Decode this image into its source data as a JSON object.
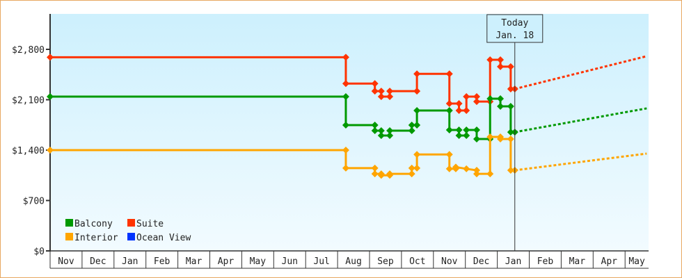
{
  "chart_data": {
    "type": "line",
    "subtype": "step",
    "title": "",
    "xlabel": "",
    "ylabel": "",
    "x_range": [
      "2022-11-01",
      "2024-05-22"
    ],
    "ylim": [
      0,
      3300
    ],
    "y_ticks": [
      0,
      700,
      1400,
      2100,
      2800
    ],
    "y_tick_labels": [
      "$0",
      "$700",
      "$1,400",
      "$2,100",
      "$2,800"
    ],
    "x_tick_labels": [
      "Nov",
      "Dec",
      "Jan",
      "Feb",
      "Mar",
      "Apr",
      "May",
      "Jun",
      "Jul",
      "Aug",
      "Sep",
      "Oct",
      "Nov",
      "Dec",
      "Jan",
      "Feb",
      "Mar",
      "Apr",
      "May"
    ],
    "grid": false,
    "legend_placement": "bottom-left",
    "today": {
      "date": "2024-01-18",
      "label_line1": "Today",
      "label_line2": "Jan. 18"
    },
    "series": [
      {
        "name": "Suite",
        "color": "#ff3300",
        "points": [
          [
            "2022-11-01",
            2690
          ],
          [
            "2023-08-09",
            2690
          ],
          [
            "2023-08-09",
            2325
          ],
          [
            "2023-09-06",
            2325
          ],
          [
            "2023-09-06",
            2220
          ],
          [
            "2023-09-12",
            2220
          ],
          [
            "2023-09-12",
            2143
          ],
          [
            "2023-09-20",
            2143
          ],
          [
            "2023-09-20",
            2220
          ],
          [
            "2023-10-16",
            2220
          ],
          [
            "2023-10-16",
            2460
          ],
          [
            "2023-11-16",
            2460
          ],
          [
            "2023-11-16",
            2047
          ],
          [
            "2023-11-25",
            2047
          ],
          [
            "2023-11-25",
            1950
          ],
          [
            "2023-12-02",
            1950
          ],
          [
            "2023-12-02",
            2143
          ],
          [
            "2023-12-12",
            2143
          ],
          [
            "2023-12-12",
            2075
          ],
          [
            "2023-12-25",
            2075
          ],
          [
            "2023-12-25",
            2655
          ],
          [
            "2024-01-04",
            2655
          ],
          [
            "2024-01-04",
            2560
          ],
          [
            "2024-01-14",
            2560
          ],
          [
            "2024-01-14",
            2250
          ],
          [
            "2024-01-18",
            2250
          ]
        ],
        "forecast": [
          [
            "2024-01-18",
            2250
          ],
          [
            "2024-05-22",
            2705
          ]
        ]
      },
      {
        "name": "Balcony",
        "color": "#009900",
        "points": [
          [
            "2022-11-01",
            2143
          ],
          [
            "2023-08-09",
            2143
          ],
          [
            "2023-08-09",
            1748
          ],
          [
            "2023-09-06",
            1748
          ],
          [
            "2023-09-06",
            1670
          ],
          [
            "2023-09-12",
            1670
          ],
          [
            "2023-09-12",
            1603
          ],
          [
            "2023-09-20",
            1603
          ],
          [
            "2023-09-20",
            1670
          ],
          [
            "2023-10-11",
            1670
          ],
          [
            "2023-10-11",
            1748
          ],
          [
            "2023-10-16",
            1748
          ],
          [
            "2023-10-16",
            1950
          ],
          [
            "2023-11-16",
            1950
          ],
          [
            "2023-11-16",
            1680
          ],
          [
            "2023-11-25",
            1680
          ],
          [
            "2023-11-25",
            1603
          ],
          [
            "2023-12-02",
            1603
          ],
          [
            "2023-12-02",
            1680
          ],
          [
            "2023-12-12",
            1680
          ],
          [
            "2023-12-12",
            1555
          ],
          [
            "2023-12-25",
            1555
          ],
          [
            "2023-12-25",
            2115
          ],
          [
            "2024-01-04",
            2115
          ],
          [
            "2024-01-04",
            2008
          ],
          [
            "2024-01-14",
            2008
          ],
          [
            "2024-01-14",
            1650
          ],
          [
            "2024-01-18",
            1650
          ]
        ],
        "forecast": [
          [
            "2024-01-18",
            1650
          ],
          [
            "2024-05-22",
            1980
          ]
        ]
      },
      {
        "name": "Interior",
        "color": "#ffa500",
        "points": [
          [
            "2022-11-01",
            1400
          ],
          [
            "2023-08-09",
            1400
          ],
          [
            "2023-08-09",
            1150
          ],
          [
            "2023-09-06",
            1150
          ],
          [
            "2023-09-06",
            1070
          ],
          [
            "2023-09-12",
            1070
          ],
          [
            "2023-09-12",
            1050
          ],
          [
            "2023-09-20",
            1050
          ],
          [
            "2023-09-20",
            1070
          ],
          [
            "2023-10-11",
            1070
          ],
          [
            "2023-10-11",
            1150
          ],
          [
            "2023-10-16",
            1150
          ],
          [
            "2023-10-16",
            1340
          ],
          [
            "2023-11-16",
            1340
          ],
          [
            "2023-11-16",
            1140
          ],
          [
            "2023-11-22",
            1140
          ],
          [
            "2023-11-22",
            1165
          ],
          [
            "2023-12-02",
            1140
          ],
          [
            "2023-12-12",
            1120
          ],
          [
            "2023-12-12",
            1070
          ],
          [
            "2023-12-25",
            1070
          ],
          [
            "2023-12-25",
            1583
          ],
          [
            "2024-01-04",
            1583
          ],
          [
            "2024-01-04",
            1555
          ],
          [
            "2024-01-14",
            1555
          ],
          [
            "2024-01-14",
            1120
          ],
          [
            "2024-01-18",
            1120
          ]
        ],
        "forecast": [
          [
            "2024-01-18",
            1120
          ],
          [
            "2024-05-22",
            1352
          ]
        ]
      },
      {
        "name": "Ocean View",
        "color": "#0033ff",
        "points": [],
        "forecast": []
      }
    ],
    "legend": [
      {
        "name": "Balcony",
        "color": "#009900"
      },
      {
        "name": "Suite",
        "color": "#ff3300"
      },
      {
        "name": "Interior",
        "color": "#ffa500"
      },
      {
        "name": "Ocean View",
        "color": "#0033ff"
      }
    ]
  }
}
